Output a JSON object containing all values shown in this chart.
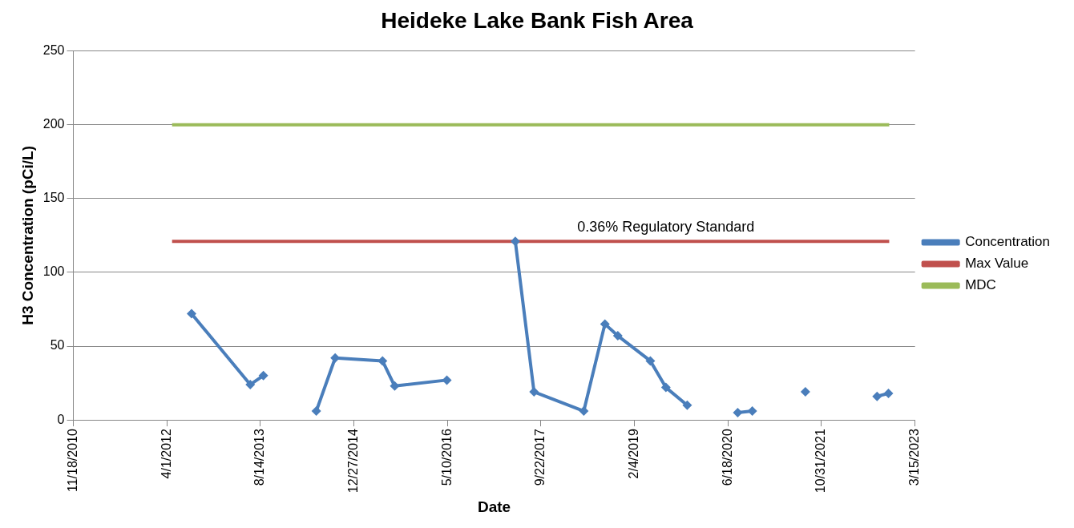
{
  "chart_data": {
    "type": "line",
    "title": "Heideke Lake Bank Fish Area",
    "xlabel": "Date",
    "ylabel": "H3 Concentration (pCi/L)",
    "series": [
      {
        "name": "Concentration",
        "color": "#4a7ebb",
        "marker": "diamond",
        "x": [
          "2012-08-11",
          "2013-06-21",
          "2013-08-30"
        ],
        "values": [
          72,
          24,
          30
        ]
      },
      {
        "color": "#4a7ebb",
        "marker": "diamond",
        "x": [
          "2014-06-09",
          "2014-09-18",
          "2015-05-29",
          "2015-08-02",
          "2016-05-07"
        ],
        "values": [
          6,
          42,
          40,
          23,
          27
        ]
      },
      {
        "color": "#4a7ebb",
        "marker": "diamond",
        "x": [
          "2017-05-08",
          "2017-08-16",
          "2018-05-09",
          "2018-08-30",
          "2018-11-07",
          "2019-04-30",
          "2019-07-22",
          "2019-11-13"
        ],
        "values": [
          121,
          19,
          6,
          65,
          57,
          40,
          22,
          10
        ]
      },
      {
        "color": "#4a7ebb",
        "marker": "diamond",
        "x": [
          "2020-08-09",
          "2020-10-26"
        ],
        "values": [
          5,
          6
        ]
      },
      {
        "color": "#4a7ebb",
        "marker": "diamond",
        "x": [
          "2021-08-06"
        ],
        "values": [
          19
        ]
      },
      {
        "color": "#4a7ebb",
        "marker": "diamond",
        "x": [
          "2022-08-24",
          "2022-10-24"
        ],
        "values": [
          16,
          18
        ]
      },
      {
        "name": "Max Value",
        "color": "#c0504d",
        "marker": "none",
        "x": [
          "2012-04-29",
          "2022-10-28"
        ],
        "values": [
          121,
          121
        ]
      },
      {
        "name": "MDC",
        "color": "#9bbb59",
        "marker": "none",
        "x": [
          "2012-04-29",
          "2022-10-28"
        ],
        "values": [
          200,
          200
        ]
      }
    ],
    "annotations": [
      {
        "text": "0.36% Regulatory Standard",
        "x": "2019-07-22",
        "y": 121
      }
    ],
    "xlim": [
      "2010-11-18",
      "2023-03-15"
    ],
    "xticks": [
      {
        "value": "2010-11-18",
        "label": "11/18/2010"
      },
      {
        "value": "2012-04-01",
        "label": "4/1/2012"
      },
      {
        "value": "2013-08-14",
        "label": "8/14/2013"
      },
      {
        "value": "2014-12-27",
        "label": "12/27/2014"
      },
      {
        "value": "2016-05-10",
        "label": "5/10/2016"
      },
      {
        "value": "2017-09-22",
        "label": "9/22/2017"
      },
      {
        "value": "2019-02-04",
        "label": "2/4/2019"
      },
      {
        "value": "2020-06-18",
        "label": "6/18/2020"
      },
      {
        "value": "2021-10-31",
        "label": "10/31/2021"
      },
      {
        "value": "2023-03-15",
        "label": "3/15/2023"
      }
    ],
    "ylim": [
      0,
      250
    ],
    "yticks": [
      0,
      50,
      100,
      150,
      200,
      250
    ],
    "grid": "y",
    "legend": "right",
    "line_style": "solid"
  }
}
